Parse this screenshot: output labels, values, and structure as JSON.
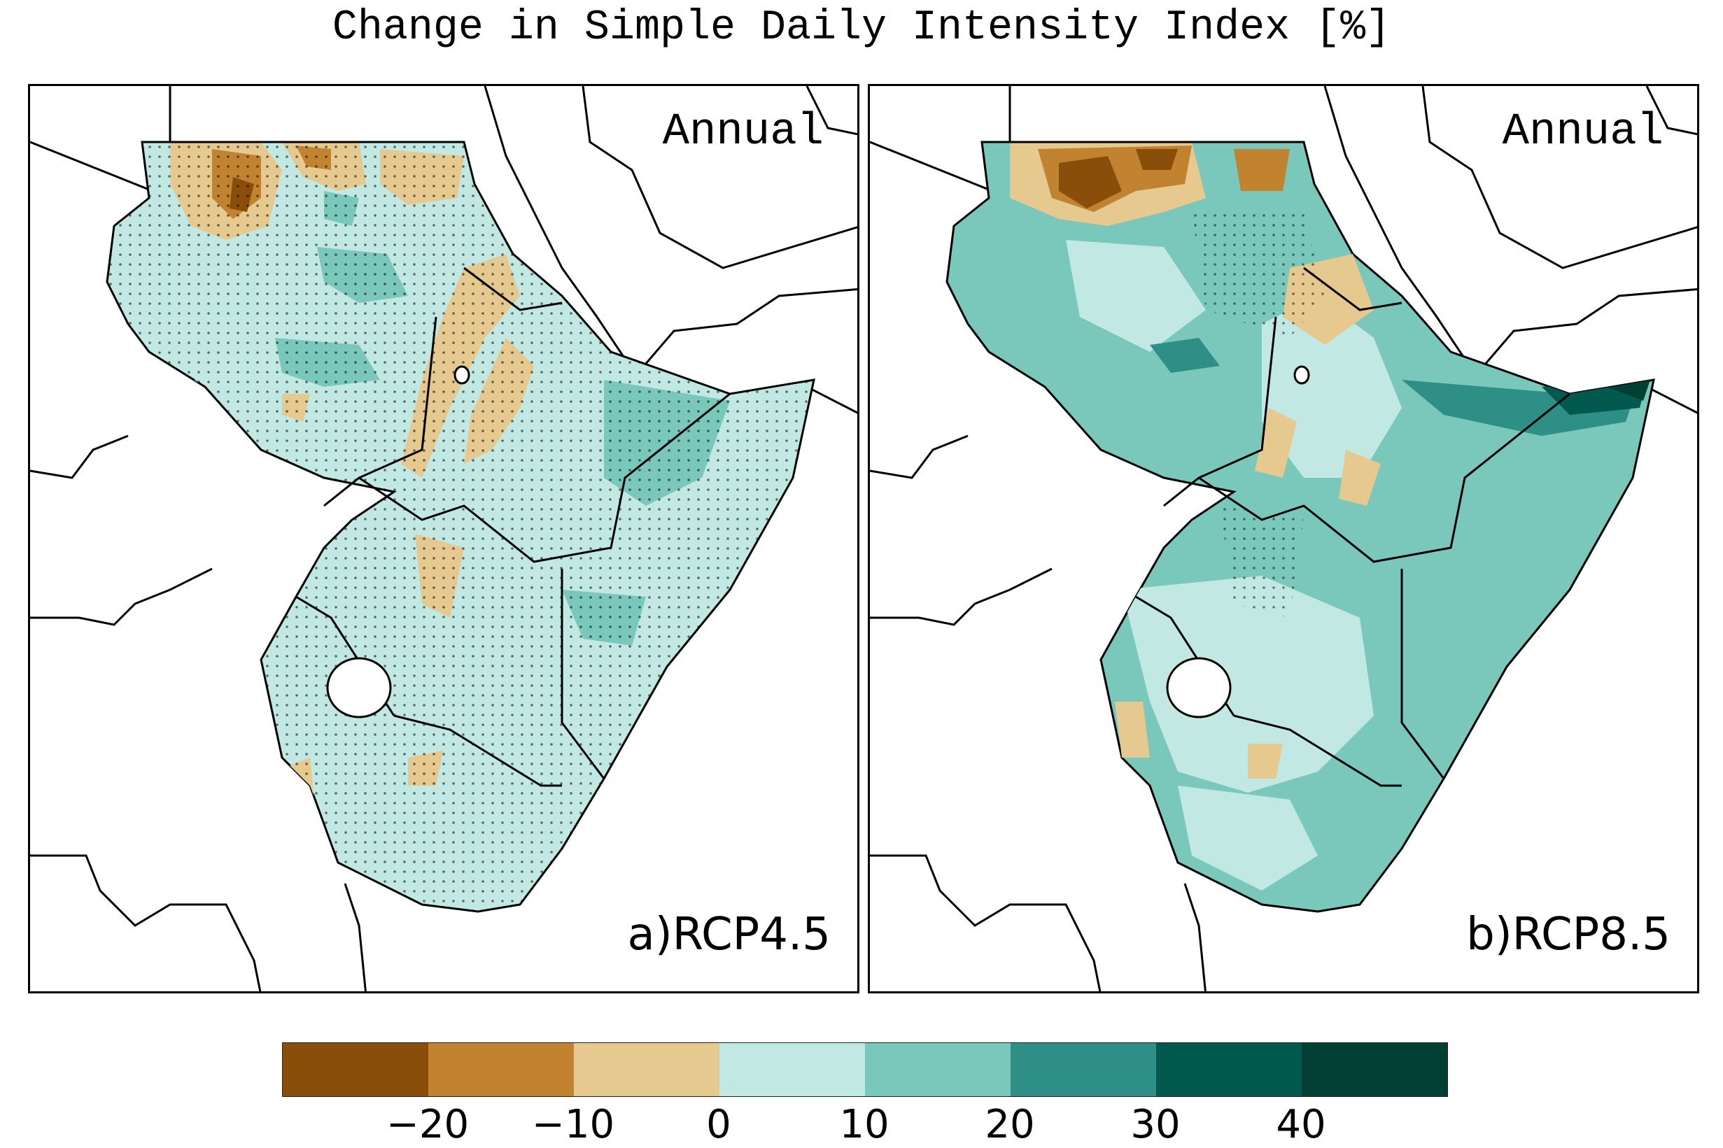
{
  "title": "Change in Simple Daily Intensity Index [%]",
  "panels": [
    {
      "season": "Annual",
      "label": "a)RCP4.5"
    },
    {
      "season": "Annual",
      "label": "b)RCP8.5"
    }
  ],
  "colorbar": {
    "colors": [
      "#8a4e0b",
      "#c1832f",
      "#e6c98f",
      "#c1e8e3",
      "#7ac7bc",
      "#2d8f86",
      "#02594d",
      "#013f35"
    ],
    "ticks": [
      "-20",
      "-10",
      "0",
      "10",
      "20",
      "30",
      "40"
    ]
  }
}
